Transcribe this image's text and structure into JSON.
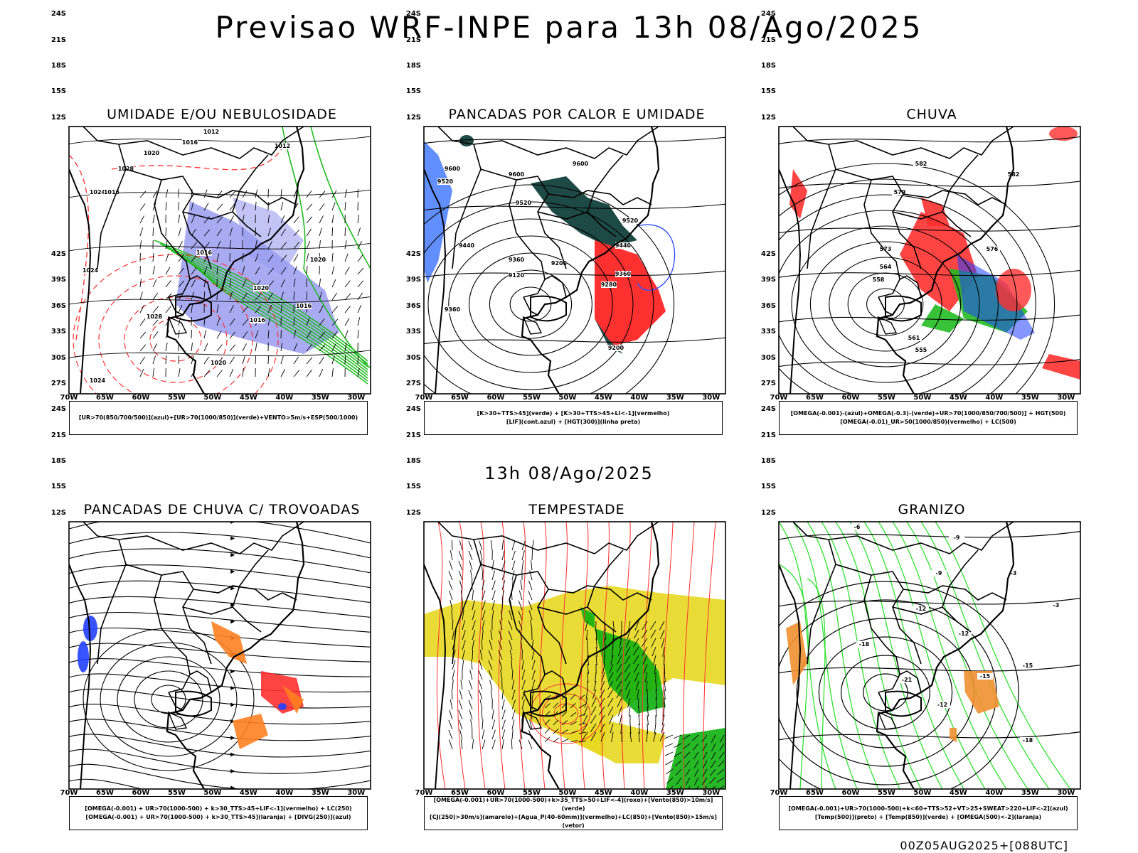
{
  "header": {
    "main_title": "Previsao WRF-INPE  para 13h 08/Ago/2025",
    "mid_title": "13h 08/Ago/2025",
    "footer": "00Z05AUG2025+[088UTC]"
  },
  "axes": {
    "lat_labels": [
      "12S",
      "15S",
      "18S",
      "21S",
      "24S",
      "27S",
      "30S",
      "33S",
      "36S",
      "39S",
      "42S"
    ],
    "lon_labels": [
      "70W",
      "65W",
      "60W",
      "55W",
      "50W",
      "45W",
      "40W",
      "35W",
      "30W"
    ]
  },
  "panels": [
    {
      "id": "umidade",
      "title": "UMIDADE E/OU NEBULOSIDADE",
      "legend": [
        "[UR>70(850/700/500)](azul)+[UR>70(1000/850)](verde)+VENTO>5m/s+ESP(500/1000)"
      ],
      "contour_labels": [
        "1012",
        "1016",
        "1020",
        "1024",
        "1028",
        "1016",
        "1012",
        "1016",
        "1020",
        "1028",
        "1024",
        "1020",
        "1016",
        "1012",
        "1016",
        "1020",
        "1024"
      ],
      "colors": {
        "blue_fill": "#9a9cf0",
        "green_line": "#22bb22",
        "red_dash": "#ff3030"
      }
    },
    {
      "id": "pancadas-calor",
      "title": "PANCADAS POR CALOR E UMIDADE",
      "legend": [
        "[K>30+TTS>45](verde) + [K>30+TTS>45+LI<-1](vermelho)",
        "[LIF](cont.azul) + [HGT(300)](linha preta)"
      ],
      "contour_labels": [
        "9600",
        "9520",
        "9600",
        "9600",
        "9520",
        "9520",
        "9440",
        "9360",
        "9440",
        "9200",
        "9120",
        "9360",
        "9280",
        "9360",
        "9200"
      ],
      "colors": {
        "dark_teal": "#1e4a46",
        "red": "#ff3030",
        "blue": "#3050ff"
      }
    },
    {
      "id": "chuva",
      "title": "CHUVA",
      "legend": [
        "[OMEGA(-0.001)-(azul)+OMEGA(-0.3)-(verde)+UR>70(1000/850/700/500)] + HGT(500)",
        "[OMEGA(-0.01)_UR>50(1000/850)(vermelho) + LC(500)"
      ],
      "contour_labels": [
        "582",
        "579",
        "582",
        "576",
        "573",
        "564",
        "558",
        "561",
        "555"
      ],
      "colors": {
        "red": "#ff3030",
        "green": "#22bb22",
        "blue": "#2040ff"
      }
    },
    {
      "id": "pancadas-trovoadas",
      "title": "PANCADAS DE CHUVA C/ TROVOADAS",
      "legend": [
        "[OMEGA(-0.001) + UR>70(1000-500) + k>30_TTS>45+LIF<-1](vermelho) + LC(250)",
        "[OMEGA(-0.001) + UR>70(1000-500) + k>30_TTS>45](laranja) + [DIVG(250)](azul)"
      ],
      "contour_labels": [],
      "colors": {
        "orange": "#ff8020",
        "red": "#ff3030",
        "blue": "#2040ff"
      }
    },
    {
      "id": "tempestade",
      "title": "TEMPESTADE",
      "legend": [
        "[OMEGA(-0.001)+UR>70(1000-500)+k>35_TTS>50+LIF<-4](roxo)+[Vento(850)>10m/s](verde)",
        "[CJ(250)>30m/s](amarelo)+[Agua_P(40-60mm)](vermelho)+LC(850)+[Vento(850)>15m/s](vetor)"
      ],
      "contour_labels": [],
      "colors": {
        "yellow": "#e8d820",
        "green": "#10b010",
        "red_line": "#ff3030"
      }
    },
    {
      "id": "granizo",
      "title": "GRANIZO",
      "legend": [
        "[OMEGA(-0.001)+UR>70(1000-500)+k<60+TTS>52+VT>25+SWEAT>220+LIF<-2](azul)",
        "[Temp(500)](preto) + [Temp(850)](verde) + [OMEGA(500)<-2](laranja)"
      ],
      "contour_labels": [
        "-6",
        "-9",
        "-3",
        "-9",
        "-12",
        "-3",
        "-12",
        "-15",
        "-18",
        "-21",
        "-15",
        "-12",
        "-18"
      ],
      "colors": {
        "green": "#30e030",
        "orange": "#f09030",
        "black": "#000000"
      }
    }
  ]
}
